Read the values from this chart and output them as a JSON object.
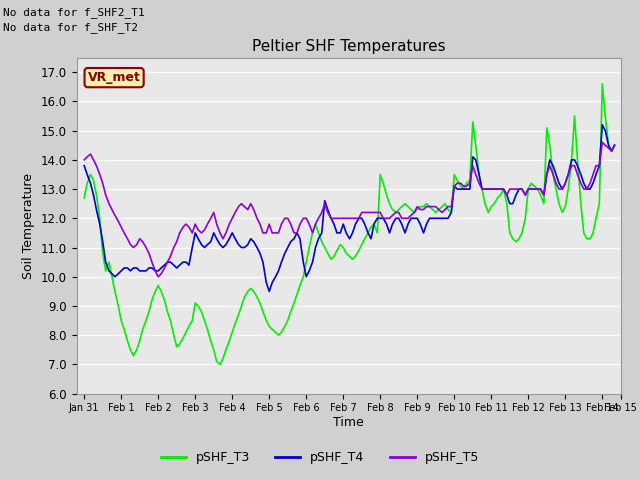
{
  "title": "Peltier SHF Temperatures",
  "xlabel": "Time",
  "ylabel": "Soil Temperature",
  "ylim": [
    6.0,
    17.5
  ],
  "yticks": [
    6.0,
    7.0,
    8.0,
    9.0,
    10.0,
    11.0,
    12.0,
    13.0,
    14.0,
    15.0,
    16.0,
    17.0
  ],
  "annotations_top_left": [
    "No data for f_SHF2_T1",
    "No data for f_SHF_T2"
  ],
  "vr_met_label": "VR_met",
  "legend_entries": [
    "pSHF_T3",
    "pSHF_T4",
    "pSHF_T5"
  ],
  "legend_colors": [
    "#00ee00",
    "#0000cd",
    "#8b00d4"
  ],
  "colors": {
    "T3": "#00ee00",
    "T4": "#0000cd",
    "T5": "#8b00d4"
  },
  "xtick_labels": [
    "Jan 31",
    "Feb 1",
    "Feb 2",
    "Feb 3",
    "Feb 4",
    "Feb 5",
    "Feb 6",
    "Feb 7",
    "Feb 8",
    "Feb 9",
    "Feb 10",
    "Feb 11",
    "Feb 12",
    "Feb 13",
    "Feb 14",
    "Feb 15"
  ],
  "T3_x": [
    0.0,
    0.08,
    0.17,
    0.25,
    0.33,
    0.42,
    0.5,
    0.58,
    0.67,
    0.75,
    0.83,
    0.92,
    1.0,
    1.08,
    1.17,
    1.25,
    1.33,
    1.42,
    1.5,
    1.58,
    1.67,
    1.75,
    1.83,
    1.92,
    2.0,
    2.08,
    2.17,
    2.25,
    2.33,
    2.42,
    2.5,
    2.58,
    2.67,
    2.75,
    2.83,
    2.92,
    3.0,
    3.08,
    3.17,
    3.25,
    3.33,
    3.42,
    3.5,
    3.58,
    3.67,
    3.75,
    3.83,
    3.92,
    4.0,
    4.08,
    4.17,
    4.25,
    4.33,
    4.42,
    4.5,
    4.58,
    4.67,
    4.75,
    4.83,
    4.92,
    5.0,
    5.08,
    5.17,
    5.25,
    5.33,
    5.42,
    5.5,
    5.58,
    5.67,
    5.75,
    5.83,
    5.92,
    6.0,
    6.08,
    6.17,
    6.25,
    6.33,
    6.42,
    6.5,
    6.58,
    6.67,
    6.75,
    6.83,
    6.92,
    7.0,
    7.08,
    7.17,
    7.25,
    7.33,
    7.42,
    7.5,
    7.58,
    7.67,
    7.75,
    7.83,
    7.92,
    8.0,
    8.08,
    8.17,
    8.25,
    8.33,
    8.42,
    8.5,
    8.58,
    8.67,
    8.75,
    8.83,
    8.92,
    9.0,
    9.08,
    9.17,
    9.25,
    9.33,
    9.42,
    9.5,
    9.58,
    9.67,
    9.75,
    9.83,
    9.92,
    10.0,
    10.08,
    10.17,
    10.25,
    10.33,
    10.42,
    10.5,
    10.58,
    10.67,
    10.75,
    10.83,
    10.92,
    11.0,
    11.08,
    11.17,
    11.25,
    11.33,
    11.42,
    11.5,
    11.58,
    11.67,
    11.75,
    11.83,
    11.92,
    12.0,
    12.08,
    12.17,
    12.25,
    12.33,
    12.42,
    12.5,
    12.58,
    12.67,
    12.75,
    12.83,
    12.92,
    13.0,
    13.08,
    13.17,
    13.25,
    13.33,
    13.42,
    13.5,
    13.58,
    13.67,
    13.75,
    13.83,
    13.92,
    14.0,
    14.08,
    14.17,
    14.25,
    14.33
  ],
  "T3_y": [
    12.7,
    13.2,
    13.5,
    13.3,
    12.8,
    12.0,
    10.8,
    10.2,
    10.5,
    10.0,
    9.5,
    9.0,
    8.5,
    8.2,
    7.8,
    7.5,
    7.3,
    7.5,
    7.8,
    8.2,
    8.5,
    8.8,
    9.2,
    9.5,
    9.7,
    9.5,
    9.2,
    8.8,
    8.5,
    8.0,
    7.6,
    7.7,
    7.9,
    8.1,
    8.3,
    8.5,
    9.1,
    9.0,
    8.8,
    8.5,
    8.2,
    7.8,
    7.5,
    7.1,
    7.0,
    7.2,
    7.5,
    7.8,
    8.1,
    8.4,
    8.7,
    9.0,
    9.3,
    9.5,
    9.6,
    9.5,
    9.3,
    9.1,
    8.8,
    8.5,
    8.3,
    8.2,
    8.1,
    8.0,
    8.1,
    8.3,
    8.5,
    8.8,
    9.1,
    9.4,
    9.7,
    10.0,
    10.5,
    11.0,
    11.5,
    11.8,
    11.5,
    11.2,
    11.0,
    10.8,
    10.6,
    10.7,
    10.9,
    11.1,
    11.0,
    10.8,
    10.7,
    10.6,
    10.7,
    10.9,
    11.1,
    11.3,
    11.5,
    11.7,
    11.8,
    11.5,
    13.5,
    13.2,
    12.8,
    12.5,
    12.3,
    12.2,
    12.3,
    12.4,
    12.5,
    12.4,
    12.3,
    12.2,
    12.3,
    12.4,
    12.4,
    12.5,
    12.4,
    12.3,
    12.2,
    12.3,
    12.4,
    12.5,
    12.3,
    12.2,
    13.5,
    13.3,
    13.1,
    13.0,
    13.2,
    13.3,
    15.3,
    14.5,
    13.5,
    13.0,
    12.5,
    12.2,
    12.4,
    12.5,
    12.7,
    12.8,
    13.0,
    12.5,
    11.5,
    11.3,
    11.2,
    11.3,
    11.5,
    12.0,
    13.0,
    13.2,
    13.1,
    13.0,
    12.8,
    12.5,
    15.1,
    14.5,
    13.5,
    13.0,
    12.5,
    12.2,
    12.4,
    13.0,
    14.0,
    15.5,
    14.0,
    12.5,
    11.5,
    11.3,
    11.3,
    11.5,
    12.0,
    12.5,
    16.6,
    15.5,
    14.5,
    14.3,
    14.5
  ],
  "T4_x": [
    0.0,
    0.08,
    0.17,
    0.25,
    0.33,
    0.42,
    0.5,
    0.58,
    0.67,
    0.75,
    0.83,
    0.92,
    1.0,
    1.08,
    1.17,
    1.25,
    1.33,
    1.42,
    1.5,
    1.58,
    1.67,
    1.75,
    1.83,
    1.92,
    2.0,
    2.08,
    2.17,
    2.25,
    2.33,
    2.42,
    2.5,
    2.58,
    2.67,
    2.75,
    2.83,
    2.92,
    3.0,
    3.08,
    3.17,
    3.25,
    3.33,
    3.42,
    3.5,
    3.58,
    3.67,
    3.75,
    3.83,
    3.92,
    4.0,
    4.08,
    4.17,
    4.25,
    4.33,
    4.42,
    4.5,
    4.58,
    4.67,
    4.75,
    4.83,
    4.92,
    5.0,
    5.08,
    5.17,
    5.25,
    5.33,
    5.42,
    5.5,
    5.58,
    5.67,
    5.75,
    5.83,
    5.92,
    6.0,
    6.08,
    6.17,
    6.25,
    6.33,
    6.42,
    6.5,
    6.58,
    6.67,
    6.75,
    6.83,
    6.92,
    7.0,
    7.08,
    7.17,
    7.25,
    7.33,
    7.42,
    7.5,
    7.58,
    7.67,
    7.75,
    7.83,
    7.92,
    8.0,
    8.08,
    8.17,
    8.25,
    8.33,
    8.42,
    8.5,
    8.58,
    8.67,
    8.75,
    8.83,
    8.92,
    9.0,
    9.08,
    9.17,
    9.25,
    9.33,
    9.42,
    9.5,
    9.58,
    9.67,
    9.75,
    9.83,
    9.92,
    10.0,
    10.08,
    10.17,
    10.25,
    10.33,
    10.42,
    10.5,
    10.58,
    10.67,
    10.75,
    10.83,
    10.92,
    11.0,
    11.08,
    11.17,
    11.25,
    11.33,
    11.42,
    11.5,
    11.58,
    11.67,
    11.75,
    11.83,
    11.92,
    12.0,
    12.08,
    12.17,
    12.25,
    12.33,
    12.42,
    12.5,
    12.58,
    12.67,
    12.75,
    12.83,
    12.92,
    13.0,
    13.08,
    13.17,
    13.25,
    13.33,
    13.42,
    13.5,
    13.58,
    13.67,
    13.75,
    13.83,
    13.92,
    14.0,
    14.08,
    14.17,
    14.25,
    14.33
  ],
  "T4_y": [
    13.8,
    13.5,
    13.2,
    12.8,
    12.3,
    11.8,
    11.2,
    10.5,
    10.2,
    10.1,
    10.0,
    10.1,
    10.2,
    10.3,
    10.3,
    10.2,
    10.3,
    10.3,
    10.2,
    10.2,
    10.2,
    10.3,
    10.3,
    10.2,
    10.2,
    10.3,
    10.4,
    10.5,
    10.5,
    10.4,
    10.3,
    10.4,
    10.5,
    10.5,
    10.4,
    11.0,
    11.5,
    11.3,
    11.1,
    11.0,
    11.1,
    11.2,
    11.5,
    11.3,
    11.1,
    11.0,
    11.1,
    11.3,
    11.5,
    11.3,
    11.1,
    11.0,
    11.0,
    11.1,
    11.3,
    11.2,
    11.0,
    10.8,
    10.5,
    9.8,
    9.5,
    9.8,
    10.0,
    10.2,
    10.5,
    10.8,
    11.0,
    11.2,
    11.3,
    11.5,
    11.3,
    10.5,
    10.0,
    10.2,
    10.5,
    11.0,
    11.3,
    11.5,
    12.6,
    12.3,
    12.0,
    11.8,
    11.5,
    11.5,
    11.8,
    11.5,
    11.3,
    11.5,
    11.8,
    12.0,
    12.0,
    11.8,
    11.5,
    11.3,
    11.8,
    12.0,
    12.0,
    12.0,
    11.8,
    11.5,
    11.8,
    12.0,
    12.0,
    11.8,
    11.5,
    11.8,
    12.0,
    12.0,
    12.0,
    11.8,
    11.5,
    11.8,
    12.0,
    12.0,
    12.0,
    12.0,
    12.0,
    12.0,
    12.0,
    12.2,
    13.1,
    13.0,
    13.0,
    13.0,
    13.0,
    13.0,
    14.1,
    14.0,
    13.5,
    13.0,
    13.0,
    13.0,
    13.0,
    13.0,
    13.0,
    13.0,
    13.0,
    12.8,
    12.5,
    12.5,
    12.8,
    13.0,
    13.0,
    12.8,
    13.0,
    13.0,
    13.0,
    13.0,
    13.0,
    12.8,
    13.5,
    14.0,
    13.8,
    13.5,
    13.2,
    13.0,
    13.2,
    13.5,
    14.0,
    14.0,
    13.8,
    13.5,
    13.2,
    13.0,
    13.0,
    13.2,
    13.5,
    13.8,
    15.2,
    15.0,
    14.5,
    14.3,
    14.5
  ],
  "T5_x": [
    0.0,
    0.08,
    0.17,
    0.25,
    0.33,
    0.42,
    0.5,
    0.58,
    0.67,
    0.75,
    0.83,
    0.92,
    1.0,
    1.08,
    1.17,
    1.25,
    1.33,
    1.42,
    1.5,
    1.58,
    1.67,
    1.75,
    1.83,
    1.92,
    2.0,
    2.08,
    2.17,
    2.25,
    2.33,
    2.42,
    2.5,
    2.58,
    2.67,
    2.75,
    2.83,
    2.92,
    3.0,
    3.08,
    3.17,
    3.25,
    3.33,
    3.42,
    3.5,
    3.58,
    3.67,
    3.75,
    3.83,
    3.92,
    4.0,
    4.08,
    4.17,
    4.25,
    4.33,
    4.42,
    4.5,
    4.58,
    4.67,
    4.75,
    4.83,
    4.92,
    5.0,
    5.08,
    5.17,
    5.25,
    5.33,
    5.42,
    5.5,
    5.58,
    5.67,
    5.75,
    5.83,
    5.92,
    6.0,
    6.08,
    6.17,
    6.25,
    6.33,
    6.42,
    6.5,
    6.58,
    6.67,
    6.75,
    6.83,
    6.92,
    7.0,
    7.08,
    7.17,
    7.25,
    7.33,
    7.42,
    7.5,
    7.58,
    7.67,
    7.75,
    7.83,
    7.92,
    8.0,
    8.08,
    8.17,
    8.25,
    8.33,
    8.42,
    8.5,
    8.58,
    8.67,
    8.75,
    8.83,
    8.92,
    9.0,
    9.08,
    9.17,
    9.25,
    9.33,
    9.42,
    9.5,
    9.58,
    9.67,
    9.75,
    9.83,
    9.92,
    10.0,
    10.08,
    10.17,
    10.25,
    10.33,
    10.42,
    10.5,
    10.58,
    10.67,
    10.75,
    10.83,
    10.92,
    11.0,
    11.08,
    11.17,
    11.25,
    11.33,
    11.42,
    11.5,
    11.58,
    11.67,
    11.75,
    11.83,
    11.92,
    12.0,
    12.08,
    12.17,
    12.25,
    12.33,
    12.42,
    12.5,
    12.58,
    12.67,
    12.75,
    12.83,
    12.92,
    13.0,
    13.08,
    13.17,
    13.25,
    13.33,
    13.42,
    13.5,
    13.58,
    13.67,
    13.75,
    13.83,
    13.92,
    14.0,
    14.08,
    14.17,
    14.25,
    14.33
  ],
  "T5_y": [
    14.0,
    14.1,
    14.2,
    14.0,
    13.8,
    13.5,
    13.2,
    12.8,
    12.5,
    12.3,
    12.1,
    11.9,
    11.7,
    11.5,
    11.3,
    11.1,
    11.0,
    11.1,
    11.3,
    11.2,
    11.0,
    10.8,
    10.5,
    10.2,
    10.0,
    10.1,
    10.3,
    10.5,
    10.7,
    11.0,
    11.2,
    11.5,
    11.7,
    11.8,
    11.7,
    11.5,
    11.8,
    11.6,
    11.5,
    11.6,
    11.8,
    12.0,
    12.2,
    11.8,
    11.5,
    11.3,
    11.5,
    11.8,
    12.0,
    12.2,
    12.4,
    12.5,
    12.4,
    12.3,
    12.5,
    12.3,
    12.0,
    11.8,
    11.5,
    11.5,
    11.8,
    11.5,
    11.5,
    11.5,
    11.8,
    12.0,
    12.0,
    11.8,
    11.5,
    11.5,
    11.8,
    12.0,
    12.0,
    11.8,
    11.5,
    11.8,
    12.0,
    12.2,
    12.5,
    12.2,
    12.0,
    12.0,
    12.0,
    12.0,
    12.0,
    12.0,
    12.0,
    12.0,
    12.0,
    12.0,
    12.2,
    12.2,
    12.2,
    12.2,
    12.2,
    12.2,
    12.2,
    12.0,
    12.0,
    12.0,
    12.1,
    12.2,
    12.2,
    12.0,
    12.0,
    12.0,
    12.1,
    12.2,
    12.4,
    12.3,
    12.3,
    12.4,
    12.4,
    12.4,
    12.4,
    12.3,
    12.2,
    12.3,
    12.4,
    12.4,
    13.1,
    13.2,
    13.2,
    13.1,
    13.1,
    13.2,
    13.8,
    13.5,
    13.2,
    13.0,
    13.0,
    13.0,
    13.0,
    13.0,
    13.0,
    13.0,
    13.0,
    12.8,
    13.0,
    13.0,
    13.0,
    13.0,
    13.0,
    12.8,
    13.0,
    13.0,
    13.0,
    13.0,
    13.0,
    12.8,
    13.5,
    13.8,
    13.5,
    13.2,
    13.0,
    13.0,
    13.2,
    13.5,
    13.8,
    13.8,
    13.5,
    13.2,
    13.0,
    13.0,
    13.2,
    13.5,
    13.8,
    13.8,
    14.6,
    14.5,
    14.4,
    14.3,
    14.5
  ]
}
